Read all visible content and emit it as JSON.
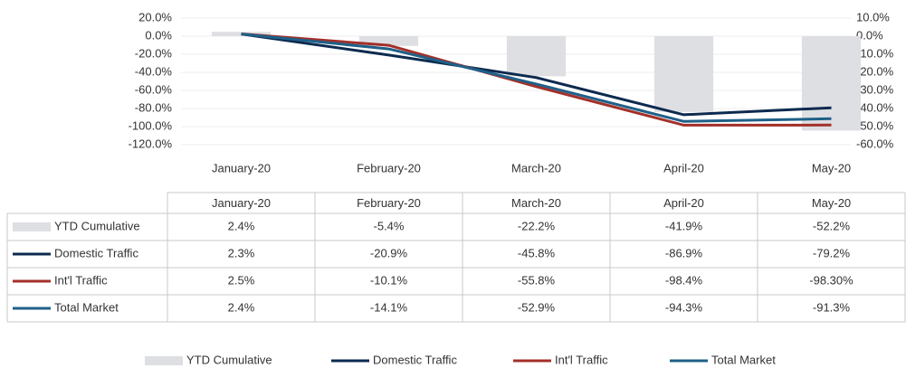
{
  "chart_data": {
    "type": "bar-line",
    "categories": [
      "January-20",
      "February-20",
      "March-20",
      "April-20",
      "May-20"
    ],
    "series": [
      {
        "name": "YTD Cumulative",
        "type": "bar",
        "axis": "y2",
        "color": "#dedfe3",
        "values": [
          2.4,
          -5.4,
          -22.2,
          -41.9,
          -52.2
        ],
        "value_labels": [
          "2.4%",
          "-5.4%",
          "-22.2%",
          "-41.9%",
          "-52.2%"
        ]
      },
      {
        "name": "Domestic Traffic",
        "type": "line",
        "color": "#0d2a4f",
        "values": [
          2.3,
          -20.9,
          -45.8,
          -86.9,
          -79.2
        ],
        "value_labels": [
          "2.3%",
          "-20.9%",
          "-45.8%",
          "-86.9%",
          "-79.2%"
        ]
      },
      {
        "name": "Int'l Traffic",
        "type": "line",
        "color": "#a3302a",
        "values": [
          2.5,
          -10.1,
          -55.8,
          -98.4,
          -98.3
        ],
        "value_labels": [
          "2.5%",
          "-10.1%",
          "-55.8%",
          "-98.4%",
          "-98.30%"
        ]
      },
      {
        "name": "Total Market",
        "type": "line",
        "color": "#1f6088",
        "values": [
          2.4,
          -14.1,
          -52.9,
          -94.3,
          -91.3
        ],
        "value_labels": [
          "2.4%",
          "-14.1%",
          "-52.9%",
          "-94.3%",
          "-91.3%"
        ]
      }
    ],
    "ylim": [
      -120,
      20
    ],
    "yticks": [
      {
        "value": 20,
        "label": "20.0%"
      },
      {
        "value": 0,
        "label": "0.0%"
      },
      {
        "value": -20,
        "label": "-20.0%"
      },
      {
        "value": -40,
        "label": "-40.0%"
      },
      {
        "value": -60,
        "label": "-60.0%"
      },
      {
        "value": -80,
        "label": "-80.0%"
      },
      {
        "value": -100,
        "label": "-100.0%"
      },
      {
        "value": -120,
        "label": "-120.0%"
      }
    ],
    "y2lim": [
      -60,
      10
    ],
    "y2ticks": [
      {
        "value": 10,
        "label": "10.0%"
      },
      {
        "value": 0,
        "label": "0.0%"
      },
      {
        "value": -10,
        "label": "-10.0%"
      },
      {
        "value": -20,
        "label": "-20.0%"
      },
      {
        "value": -30,
        "label": "-30.0%"
      },
      {
        "value": -40,
        "label": "-40.0%"
      },
      {
        "value": -50,
        "label": "-50.0%"
      },
      {
        "value": -60,
        "label": "-60.0%"
      }
    ],
    "grid": true,
    "legend": "bottom",
    "data_table": true
  }
}
